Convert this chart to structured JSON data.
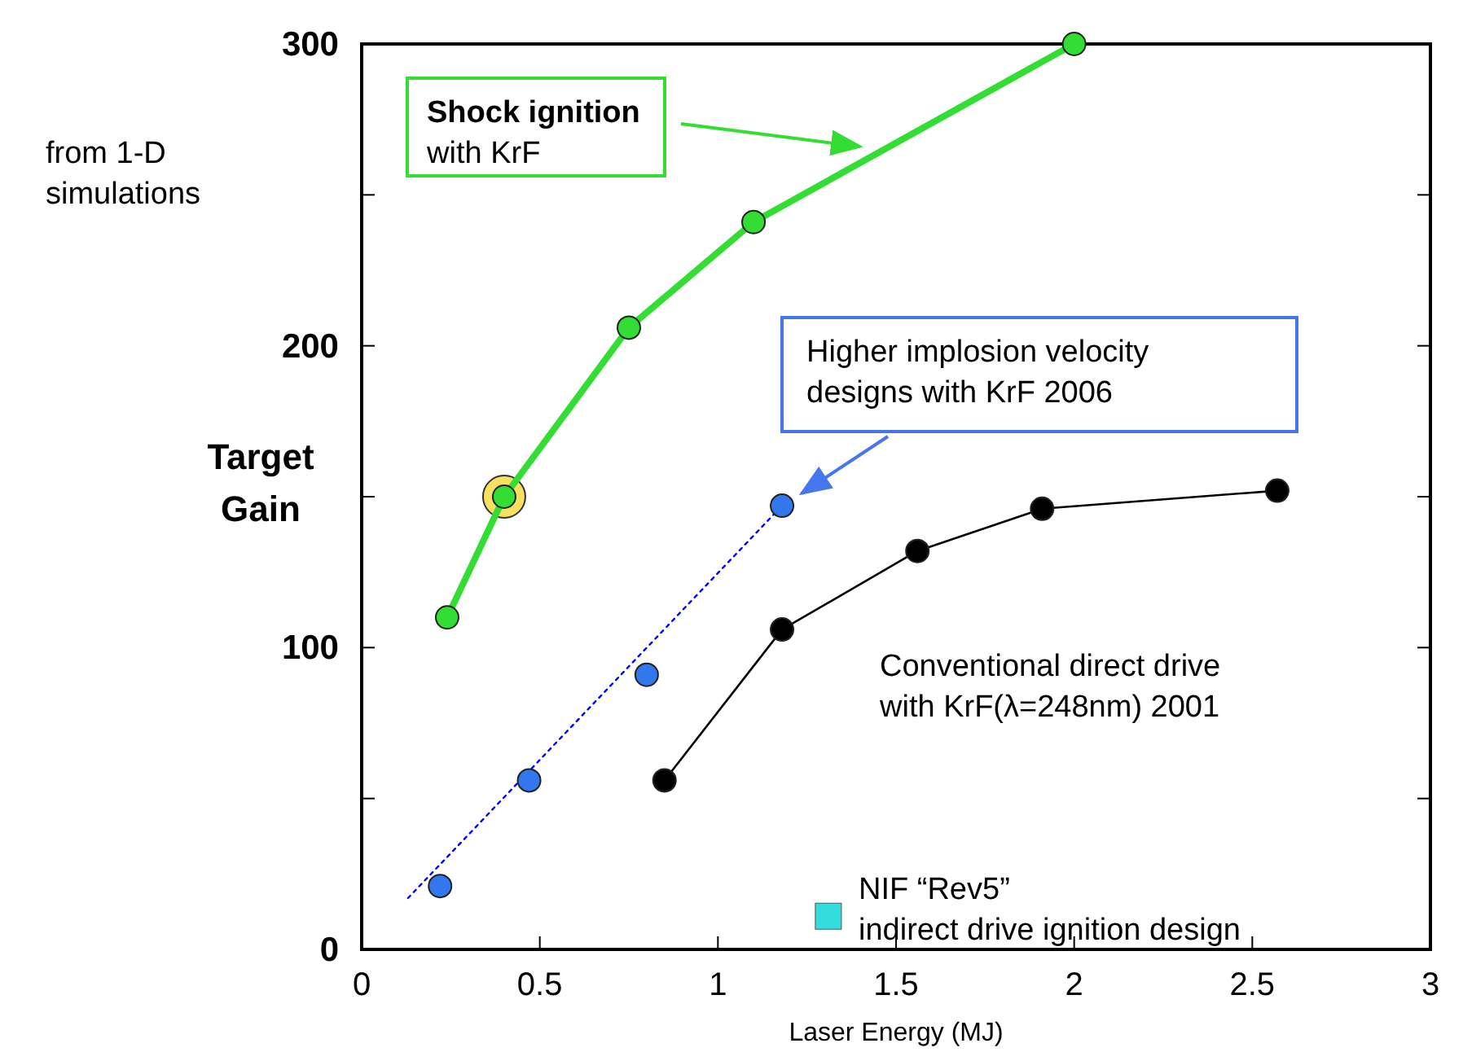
{
  "chart_data": {
    "type": "line",
    "xlabel": "Laser Energy (MJ)",
    "ylabel": "Target Gain",
    "xlim": [
      0,
      3
    ],
    "ylim": [
      0,
      300
    ],
    "xticks": [
      0,
      0.5,
      1,
      1.5,
      2,
      2.5,
      3
    ],
    "yticks": [
      0,
      {
        "value": 50,
        "label": null
      },
      100,
      {
        "value": 150,
        "label": null
      },
      200,
      {
        "value": 250,
        "label": null
      },
      300
    ],
    "grid": false,
    "series": [
      {
        "type": "line",
        "color": "#0000ff",
        "x": [
          0.13,
          1.18
        ],
        "values": [
          17,
          147
        ],
        "marker": "none",
        "line_style": "dotted"
      },
      {
        "type": "bubble",
        "color": "#f8e060",
        "x": [
          0.4
        ],
        "values": [
          150
        ],
        "sizes": [
          1
        ]
      },
      {
        "color": "#33dd33",
        "x": [
          0.24,
          0.4,
          0.75,
          1.1,
          2.0
        ],
        "values": [
          110,
          150,
          206,
          241,
          300
        ],
        "marker": "circle",
        "line_style": "solid"
      },
      {
        "type": "scatter",
        "color": "#3377ee",
        "x": [
          0.22,
          0.47,
          0.8,
          1.18
        ],
        "values": [
          21,
          56,
          91,
          147
        ],
        "marker": "circle"
      },
      {
        "color": "#000000",
        "x": [
          0.85,
          1.18,
          1.56,
          1.91,
          2.57
        ],
        "values": [
          56,
          106,
          132,
          146,
          152
        ],
        "marker": "circle",
        "line_style": "solid"
      },
      {
        "type": "scatter",
        "color": "#33dddd",
        "x": [
          1.31
        ],
        "values": [
          11
        ],
        "marker": "square"
      }
    ],
    "annotations": [
      "Shock ignition\nwith KrF",
      "Higher implosion velocity\ndesigns with KrF  2006",
      "Conventional direct drive\nwith KrF(λ=248nm)  2001",
      "NIF “Rev5”\nindirect drive ignition design",
      "from 1-D\nsimulations"
    ]
  }
}
